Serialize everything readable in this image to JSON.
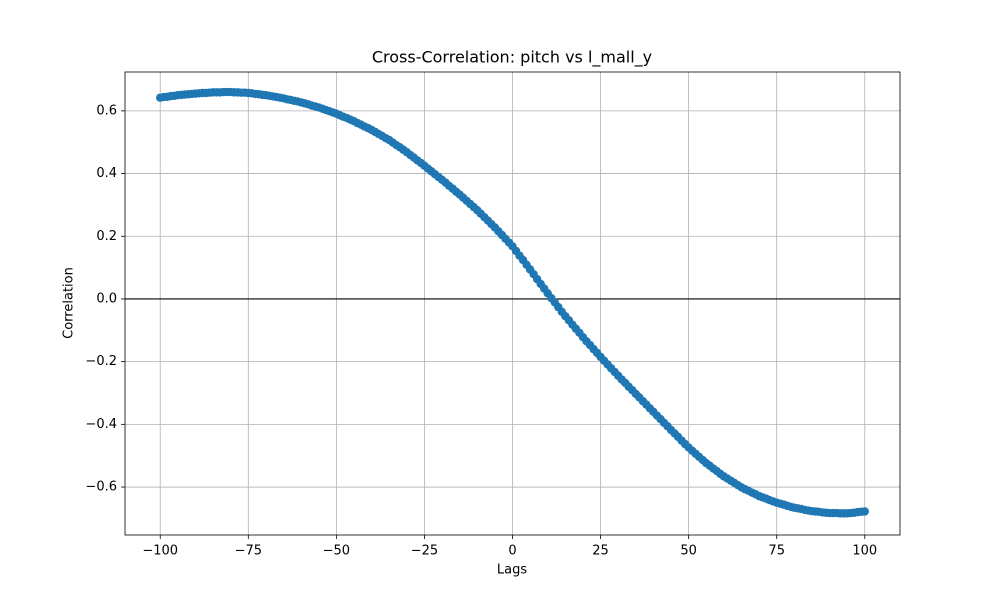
{
  "chart_data": {
    "type": "line",
    "title": "Cross-Correlation: pitch vs l_mall_y",
    "x_label": "Lags",
    "y_label": "Correlation",
    "x": [
      -100,
      -99,
      -98,
      -97,
      -96,
      -95,
      -94,
      -93,
      -92,
      -91,
      -90,
      -89,
      -88,
      -87,
      -86,
      -85,
      -84,
      -83,
      -82,
      -81,
      -80,
      -79,
      -78,
      -77,
      -76,
      -75,
      -74,
      -73,
      -72,
      -71,
      -70,
      -69,
      -68,
      -67,
      -66,
      -65,
      -64,
      -63,
      -62,
      -61,
      -60,
      -59,
      -58,
      -57,
      -56,
      -55,
      -54,
      -53,
      -52,
      -51,
      -50,
      -49,
      -48,
      -47,
      -46,
      -45,
      -44,
      -43,
      -42,
      -41,
      -40,
      -39,
      -38,
      -37,
      -36,
      -35,
      -34,
      -33,
      -32,
      -31,
      -30,
      -29,
      -28,
      -27,
      -26,
      -25,
      -24,
      -23,
      -22,
      -21,
      -20,
      -19,
      -18,
      -17,
      -16,
      -15,
      -14,
      -13,
      -12,
      -11,
      -10,
      -9,
      -8,
      -7,
      -6,
      -5,
      -4,
      -3,
      -2,
      -1,
      0,
      1,
      2,
      3,
      4,
      5,
      6,
      7,
      8,
      9,
      10,
      11,
      12,
      13,
      14,
      15,
      16,
      17,
      18,
      19,
      20,
      21,
      22,
      23,
      24,
      25,
      26,
      27,
      28,
      29,
      30,
      31,
      32,
      33,
      34,
      35,
      36,
      37,
      38,
      39,
      40,
      41,
      42,
      43,
      44,
      45,
      46,
      47,
      48,
      49,
      50,
      51,
      52,
      53,
      54,
      55,
      56,
      57,
      58,
      59,
      60,
      61,
      62,
      63,
      64,
      65,
      66,
      67,
      68,
      69,
      70,
      71,
      72,
      73,
      74,
      75,
      76,
      77,
      78,
      79,
      80,
      81,
      82,
      83,
      84,
      85,
      86,
      87,
      88,
      89,
      90,
      91,
      92,
      93,
      94,
      95,
      96,
      97,
      98,
      99,
      100
    ],
    "series": [
      {
        "name": "Correlation",
        "color": "#1f77b4",
        "marker": "o",
        "values": [
          0.642,
          0.644,
          0.645,
          0.647,
          0.648,
          0.65,
          0.651,
          0.652,
          0.653,
          0.654,
          0.655,
          0.656,
          0.657,
          0.657,
          0.658,
          0.659,
          0.659,
          0.659,
          0.66,
          0.66,
          0.66,
          0.659,
          0.659,
          0.658,
          0.658,
          0.657,
          0.656,
          0.654,
          0.653,
          0.651,
          0.65,
          0.648,
          0.646,
          0.644,
          0.642,
          0.64,
          0.637,
          0.635,
          0.632,
          0.63,
          0.627,
          0.624,
          0.621,
          0.617,
          0.614,
          0.611,
          0.607,
          0.603,
          0.599,
          0.595,
          0.591,
          0.586,
          0.581,
          0.577,
          0.572,
          0.567,
          0.561,
          0.556,
          0.55,
          0.545,
          0.539,
          0.533,
          0.526,
          0.52,
          0.513,
          0.507,
          0.499,
          0.491,
          0.484,
          0.476,
          0.468,
          0.459,
          0.451,
          0.442,
          0.434,
          0.425,
          0.416,
          0.407,
          0.398,
          0.389,
          0.38,
          0.371,
          0.361,
          0.352,
          0.342,
          0.333,
          0.323,
          0.313,
          0.303,
          0.293,
          0.283,
          0.272,
          0.261,
          0.25,
          0.239,
          0.228,
          0.216,
          0.204,
          0.192,
          0.18,
          0.168,
          0.153,
          0.138,
          0.124,
          0.109,
          0.094,
          0.079,
          0.063,
          0.048,
          0.033,
          0.018,
          0.003,
          -0.011,
          -0.026,
          -0.041,
          -0.055,
          -0.068,
          -0.082,
          -0.095,
          -0.108,
          -0.122,
          -0.135,
          -0.147,
          -0.16,
          -0.172,
          -0.185,
          -0.197,
          -0.209,
          -0.221,
          -0.233,
          -0.245,
          -0.257,
          -0.268,
          -0.28,
          -0.291,
          -0.303,
          -0.314,
          -0.326,
          -0.337,
          -0.349,
          -0.36,
          -0.372,
          -0.383,
          -0.395,
          -0.406,
          -0.418,
          -0.429,
          -0.44,
          -0.452,
          -0.463,
          -0.474,
          -0.484,
          -0.494,
          -0.504,
          -0.514,
          -0.524,
          -0.532,
          -0.541,
          -0.549,
          -0.558,
          -0.566,
          -0.573,
          -0.58,
          -0.587,
          -0.594,
          -0.601,
          -0.607,
          -0.612,
          -0.618,
          -0.623,
          -0.629,
          -0.633,
          -0.637,
          -0.642,
          -0.646,
          -0.65,
          -0.653,
          -0.656,
          -0.66,
          -0.663,
          -0.666,
          -0.668,
          -0.67,
          -0.673,
          -0.675,
          -0.677,
          -0.678,
          -0.679,
          -0.681,
          -0.682,
          -0.683,
          -0.683,
          -0.683,
          -0.684,
          -0.684,
          -0.684,
          -0.683,
          -0.682,
          -0.68,
          -0.679,
          -0.678
        ]
      }
    ],
    "xlim": [
      -110,
      110
    ],
    "ylim": [
      -0.753,
      0.724
    ],
    "xticks": [
      {
        "value": -100,
        "label": "−100"
      },
      {
        "value": -75,
        "label": "−75"
      },
      {
        "value": -50,
        "label": "−50"
      },
      {
        "value": -25,
        "label": "−25"
      },
      0,
      25,
      50,
      75,
      100
    ],
    "yticks": [
      {
        "value": -0.6,
        "label": "−0.6"
      },
      {
        "value": -0.4,
        "label": "−0.4"
      },
      {
        "value": -0.2,
        "label": "−0.2"
      },
      {
        "value": 0,
        "label": "0.0"
      },
      0.2,
      0.4,
      0.6
    ],
    "hlines": [
      {
        "value": 0,
        "color": "#000000"
      }
    ],
    "grid": true
  }
}
